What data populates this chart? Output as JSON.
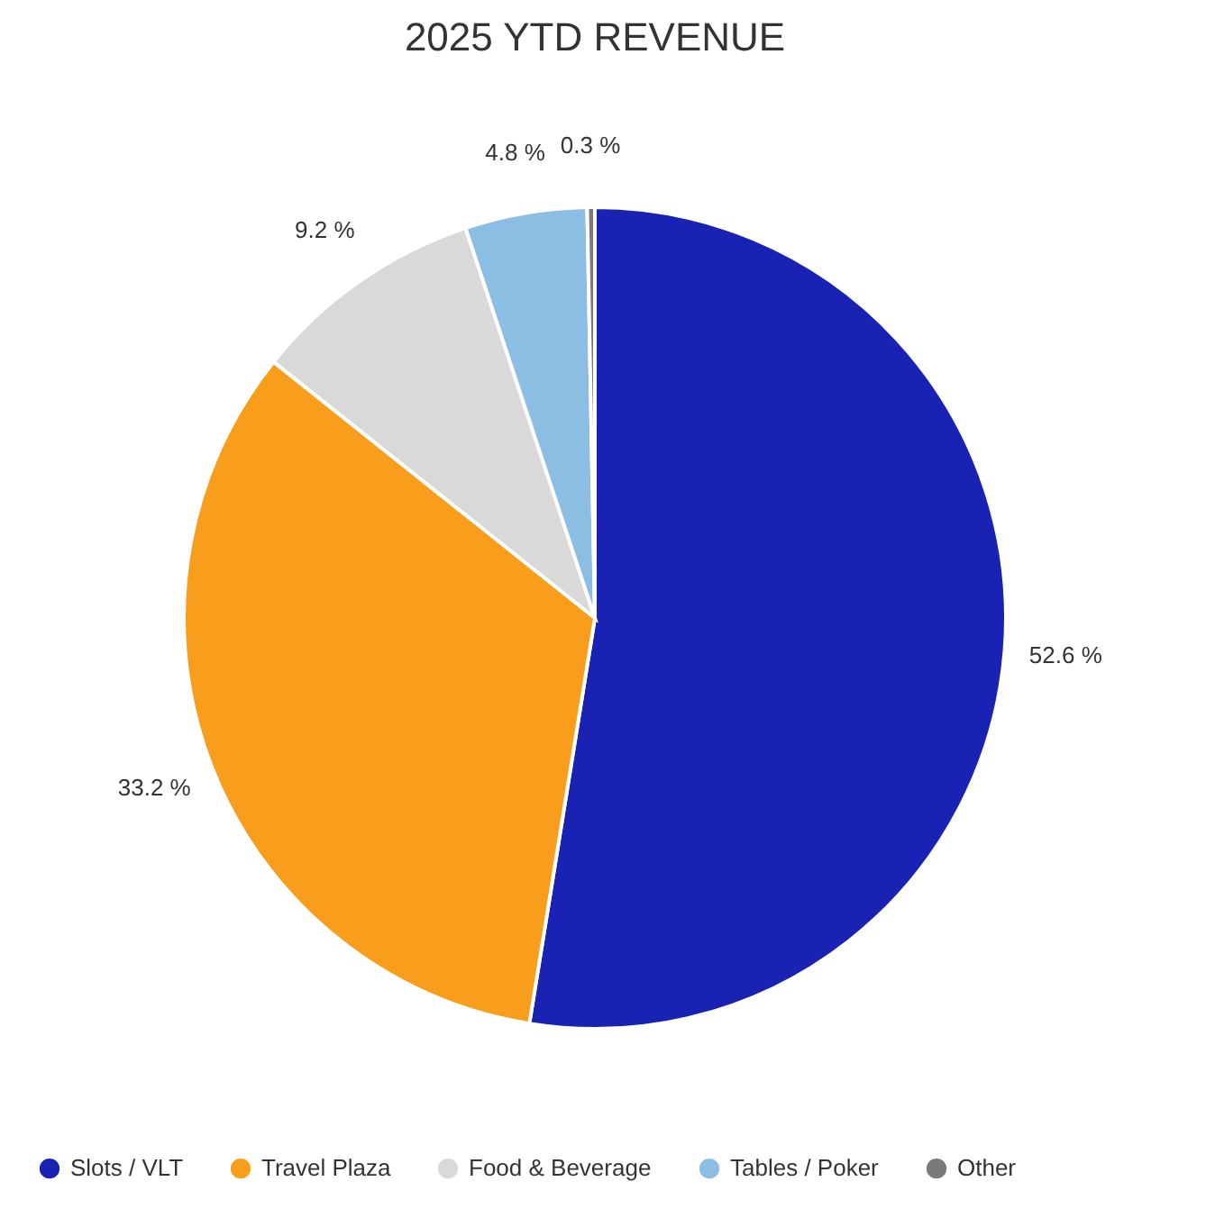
{
  "chart_data": {
    "type": "pie",
    "title": "2025 YTD REVENUE",
    "categories": [
      "Slots / VLT",
      "Travel Plaza",
      "Food & Beverage",
      "Tables / Poker",
      "Other"
    ],
    "values": [
      52.6,
      33.2,
      9.2,
      4.8,
      0.3
    ],
    "colors": [
      "#1a22b4",
      "#f89d1c",
      "#d9d9d9",
      "#8cbde3",
      "#7a7a7a"
    ],
    "value_labels": [
      "52.6 %",
      "33.2 %",
      "9.2 %",
      "4.8 %",
      "0.3 %"
    ],
    "legend": "bottom"
  }
}
